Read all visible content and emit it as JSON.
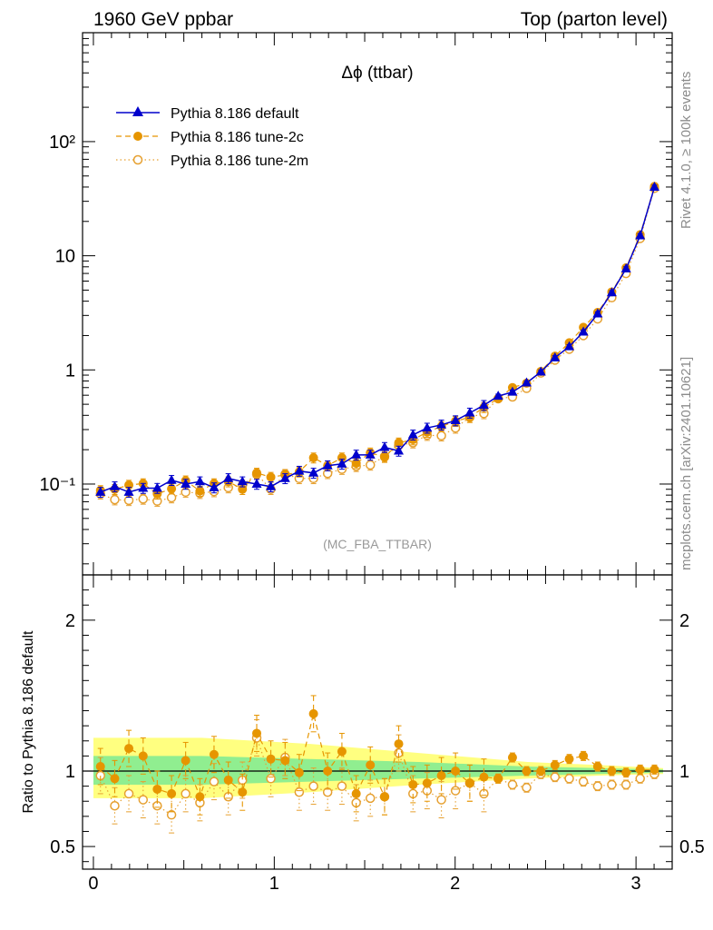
{
  "header": {
    "left": "1960 GeV ppbar",
    "right": "Top (parton level)"
  },
  "side_labels": {
    "rivet": "Rivet 4.1.0, ≥ 100k events",
    "mcplots": "mcplots.cern.ch [arXiv:2401.10621]"
  },
  "colors": {
    "default": "#0000cc",
    "tune2c": "#e69500",
    "tune2m": "#e6a030",
    "band_outer": "#ffff80",
    "band_inner": "#90ee90"
  },
  "chart_data": [
    {
      "type": "line",
      "title": "Δϕ (ttbar)",
      "watermark": "(MC_FBA_TTBAR)",
      "xlabel": "",
      "ylabel": "",
      "yscale": "log",
      "xlim": [
        -0.06,
        3.2
      ],
      "ylim": [
        0.016,
        900
      ],
      "yticklabels": [
        "10⁻¹",
        "1",
        "10",
        "10²"
      ],
      "ytickvalues": [
        0.1,
        1,
        10,
        100
      ],
      "legend_position": "top-left",
      "x": [
        0.039,
        0.118,
        0.196,
        0.275,
        0.353,
        0.432,
        0.51,
        0.589,
        0.667,
        0.746,
        0.824,
        0.903,
        0.981,
        1.06,
        1.138,
        1.217,
        1.295,
        1.374,
        1.453,
        1.531,
        1.61,
        1.688,
        1.767,
        1.845,
        1.924,
        2.002,
        2.081,
        2.159,
        2.238,
        2.317,
        2.395,
        2.474,
        2.552,
        2.631,
        2.709,
        2.788,
        2.866,
        2.945,
        3.023,
        3.102
      ],
      "series": [
        {
          "name": "Pythia 8.186 default",
          "marker": "filled-triangle",
          "line": "solid",
          "values": [
            0.085,
            0.095,
            0.085,
            0.092,
            0.092,
            0.108,
            0.1,
            0.105,
            0.093,
            0.112,
            0.105,
            0.1,
            0.095,
            0.112,
            0.13,
            0.125,
            0.145,
            0.15,
            0.18,
            0.18,
            0.21,
            0.195,
            0.27,
            0.31,
            0.33,
            0.36,
            0.42,
            0.49,
            0.59,
            0.64,
            0.77,
            0.96,
            1.28,
            1.6,
            2.15,
            3.1,
            4.75,
            7.7,
            15.0,
            40.0
          ]
        },
        {
          "name": "Pythia 8.186 tune-2c",
          "marker": "filled-circle",
          "line": "dashed",
          "values": [
            0.088,
            0.09,
            0.098,
            0.101,
            0.082,
            0.091,
            0.107,
            0.087,
            0.101,
            0.105,
            0.09,
            0.125,
            0.115,
            0.12,
            0.128,
            0.17,
            0.145,
            0.17,
            0.152,
            0.188,
            0.172,
            0.23,
            0.245,
            0.285,
            0.32,
            0.355,
            0.385,
            0.47,
            0.56,
            0.7,
            0.765,
            0.97,
            1.32,
            1.73,
            2.36,
            3.19,
            4.82,
            7.84,
            15.3,
            40.5
          ]
        },
        {
          "name": "Pythia 8.186 tune-2m",
          "marker": "open-circle",
          "line": "dotted",
          "values": [
            0.082,
            0.073,
            0.072,
            0.074,
            0.071,
            0.076,
            0.085,
            0.083,
            0.086,
            0.093,
            0.098,
            0.122,
            0.09,
            0.122,
            0.112,
            0.112,
            0.124,
            0.135,
            0.143,
            0.147,
            0.175,
            0.218,
            0.23,
            0.268,
            0.265,
            0.31,
            0.385,
            0.415,
            0.56,
            0.58,
            0.69,
            0.94,
            1.22,
            1.52,
            2.0,
            2.8,
            4.3,
            7.0,
            14.2,
            39.0
          ]
        }
      ]
    },
    {
      "type": "line",
      "title": "",
      "xlabel": "",
      "ylabel": "Ratio to Pythia 8.186 default",
      "xlim": [
        -0.06,
        3.2
      ],
      "ylim": [
        0.35,
        2.3
      ],
      "xticklabels": [
        "0",
        "1",
        "2",
        "3"
      ],
      "xtickvalues": [
        0,
        1,
        2,
        3
      ],
      "yticklabels": [
        "0.5",
        "1",
        "2"
      ],
      "ytickvalues": [
        0.5,
        1,
        2
      ],
      "reference_line": 1,
      "bands": [
        {
          "name": "outer",
          "x": [
            0,
            0.6,
            1.2,
            1.8,
            2.4,
            2.8,
            3.15
          ],
          "lower": [
            0.82,
            0.82,
            0.86,
            0.91,
            0.95,
            0.97,
            0.98
          ],
          "upper": [
            1.22,
            1.22,
            1.18,
            1.12,
            1.06,
            1.04,
            1.02
          ]
        },
        {
          "name": "inner",
          "x": [
            0,
            0.6,
            1.2,
            1.8,
            2.4,
            2.8,
            3.15
          ],
          "lower": [
            0.91,
            0.91,
            0.93,
            0.95,
            0.97,
            0.98,
            0.99
          ],
          "upper": [
            1.1,
            1.1,
            1.08,
            1.06,
            1.03,
            1.02,
            1.01
          ]
        }
      ],
      "series": [
        {
          "name": "Pythia 8.186 tune-2c",
          "marker": "filled-circle",
          "line": "dashed",
          "values": [
            1.03,
            0.95,
            1.15,
            1.1,
            0.88,
            0.85,
            1.07,
            0.83,
            1.11,
            0.94,
            0.86,
            1.25,
            1.08,
            1.07,
            0.99,
            1.38,
            1.0,
            1.13,
            0.85,
            1.04,
            0.83,
            1.18,
            0.91,
            0.92,
            0.97,
            1.0,
            0.92,
            0.96,
            0.95,
            1.09,
            1.0,
            1.0,
            1.04,
            1.08,
            1.1,
            1.03,
            1.0,
            0.99,
            1.01,
            1.01
          ]
        },
        {
          "name": "Pythia 8.186 tune-2m",
          "marker": "open-circle",
          "line": "dotted",
          "values": [
            0.97,
            0.77,
            0.85,
            0.81,
            0.77,
            0.71,
            0.85,
            0.79,
            0.93,
            0.83,
            0.94,
            1.22,
            0.95,
            1.09,
            0.86,
            0.9,
            0.86,
            0.9,
            0.79,
            0.82,
            0.83,
            1.12,
            0.85,
            0.87,
            0.81,
            0.87,
            0.92,
            0.85,
            0.95,
            0.91,
            0.89,
            0.98,
            0.96,
            0.95,
            0.93,
            0.9,
            0.91,
            0.91,
            0.95,
            0.98
          ]
        }
      ]
    }
  ]
}
